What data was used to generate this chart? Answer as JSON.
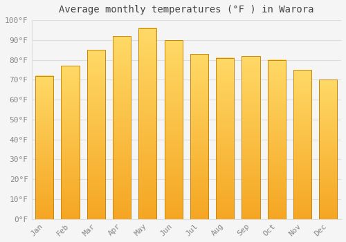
{
  "title": "Average monthly temperatures (°F ) in Warora",
  "months": [
    "Jan",
    "Feb",
    "Mar",
    "Apr",
    "May",
    "Jun",
    "Jul",
    "Aug",
    "Sep",
    "Oct",
    "Nov",
    "Dec"
  ],
  "values": [
    72,
    77,
    85,
    92,
    96,
    90,
    83,
    81,
    82,
    80,
    75,
    70
  ],
  "bar_color_top": "#FFD966",
  "bar_color_bottom": "#F5A623",
  "bar_edge_color": "#C8870A",
  "background_color": "#F5F5F5",
  "plot_bg_color": "#F5F5F5",
  "grid_color": "#DDDDDD",
  "text_color": "#888888",
  "title_color": "#444444",
  "ylim": [
    0,
    100
  ],
  "yticks": [
    0,
    10,
    20,
    30,
    40,
    50,
    60,
    70,
    80,
    90,
    100
  ],
  "ytick_labels": [
    "0°F",
    "10°F",
    "20°F",
    "30°F",
    "40°F",
    "50°F",
    "60°F",
    "70°F",
    "80°F",
    "90°F",
    "100°F"
  ],
  "title_fontsize": 10,
  "tick_fontsize": 8,
  "bar_width": 0.7
}
